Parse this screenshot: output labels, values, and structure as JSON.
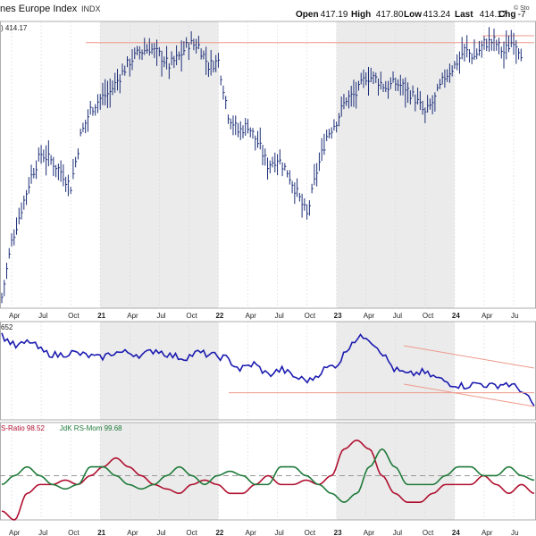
{
  "header": {
    "title": "nes Europe Index",
    "symbol_type": "INDX",
    "copyright": "© Sto",
    "quote": [
      {
        "label": "Open",
        "value": "417.19"
      },
      {
        "label": "High",
        "value": "417.80"
      },
      {
        "label": "Low",
        "value": "413.24"
      },
      {
        "label": "Last",
        "value": "414.17"
      },
      {
        "label": "Chg",
        "value": "-7"
      }
    ]
  },
  "colors": {
    "price": "#1c2e78",
    "ratio_line": "#1b1bb0",
    "rs_ratio": "#b01030",
    "rs_mom": "#1f7a3a",
    "trend_line": "#ee9a8a",
    "shade": "#ebebeb",
    "grid": "#d8d8d8"
  },
  "chart_data": [
    {
      "type": "ohlc",
      "panel": "price",
      "last_label": ") 414.17",
      "x_range": [
        "2020-03",
        "2024-08"
      ],
      "ylim": [
        300,
        430
      ],
      "x_tick_labels": [
        "Apr",
        "Jul",
        "Oct",
        "21",
        "Apr",
        "Jul",
        "Oct",
        "22",
        "Apr",
        "Jul",
        "Oct",
        "23",
        "Apr",
        "Jul",
        "Oct",
        "24",
        "Apr",
        "Ju"
      ],
      "shaded_years": [
        "2021",
        "2023"
      ],
      "resistance_level": 420,
      "series": {
        "x": [
          "2020-03",
          "2020-04",
          "2020-05",
          "2020-06",
          "2020-07",
          "2020-08",
          "2020-09",
          "2020-10",
          "2020-11",
          "2020-12",
          "2021-01",
          "2021-02",
          "2021-03",
          "2021-04",
          "2021-05",
          "2021-06",
          "2021-07",
          "2021-08",
          "2021-09",
          "2021-10",
          "2021-11",
          "2021-12",
          "2022-01",
          "2022-02",
          "2022-03",
          "2022-04",
          "2022-05",
          "2022-06",
          "2022-07",
          "2022-08",
          "2022-09",
          "2022-10",
          "2022-11",
          "2022-12",
          "2023-01",
          "2023-02",
          "2023-03",
          "2023-04",
          "2023-05",
          "2023-06",
          "2023-07",
          "2023-08",
          "2023-09",
          "2023-10",
          "2023-11",
          "2023-12",
          "2024-01",
          "2024-02",
          "2024-03",
          "2024-04",
          "2024-05",
          "2024-06",
          "2024-07",
          "2024-08"
        ],
        "close": [
          305,
          330,
          345,
          360,
          370,
          367,
          362,
          355,
          378,
          390,
          395,
          398,
          405,
          412,
          416,
          418,
          415,
          410,
          414,
          420,
          419,
          410,
          412,
          388,
          380,
          383,
          375,
          365,
          368,
          362,
          352,
          342,
          362,
          378,
          385,
          395,
          397,
          405,
          404,
          400,
          402,
          400,
          395,
          388,
          395,
          405,
          410,
          417,
          414,
          420,
          421,
          416,
          422,
          414
        ]
      }
    },
    {
      "type": "line",
      "panel": "relative-strength",
      "last_label": "652",
      "series": {
        "values": [
          0.7,
          0.66,
          0.68,
          0.64,
          0.63,
          0.64,
          0.63,
          0.62,
          0.64,
          0.64,
          0.63,
          0.65,
          0.63,
          0.62,
          0.64,
          0.63,
          0.62,
          0.58,
          0.6,
          0.56,
          0.58,
          0.55,
          0.54,
          0.58,
          0.6,
          0.68,
          0.7,
          0.65,
          0.58,
          0.56,
          0.57,
          0.55,
          0.53,
          0.52,
          0.53,
          0.52,
          0.53,
          0.51,
          0.45
        ]
      },
      "support_level": 0.535
    },
    {
      "type": "line",
      "panel": "jdk-rrg",
      "legend": [
        {
          "name": "S-Ratio 98.52",
          "color": "#b01030"
        },
        {
          "name": "JdK RS-Mom 99.68",
          "color": "#1f7a3a"
        }
      ],
      "series": [
        {
          "name": "JdK RS-Ratio",
          "values": [
            96,
            95,
            98,
            99,
            99,
            99.5,
            99,
            100,
            101,
            102,
            101,
            100,
            99,
            98.5,
            98,
            99,
            99.5,
            99,
            98,
            98,
            99,
            100,
            99,
            99,
            99.5,
            99,
            100,
            103,
            104,
            103,
            100,
            98,
            97,
            97,
            98,
            99,
            99,
            99,
            100,
            99,
            98,
            99,
            98
          ]
        },
        {
          "name": "JdK RS-Mom",
          "values": [
            99,
            100,
            101,
            100,
            99,
            98.5,
            99,
            101,
            101,
            100,
            99,
            98.5,
            99,
            100,
            101,
            100,
            99,
            100,
            100.5,
            100,
            99,
            99,
            101,
            101,
            100,
            99,
            98,
            97,
            98,
            101,
            103,
            101,
            99,
            99,
            99,
            100,
            101,
            101,
            100,
            100,
            101,
            100,
            99.5
          ]
        }
      ],
      "reference_level": 100
    }
  ]
}
